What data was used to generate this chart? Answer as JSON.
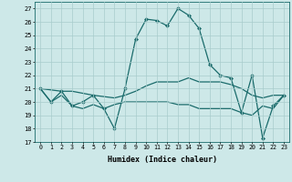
{
  "xlabel": "Humidex (Indice chaleur)",
  "bg_color": "#cde8e8",
  "grid_color": "#a8cccc",
  "line_color": "#1a6b6b",
  "xlim": [
    -0.5,
    23.5
  ],
  "ylim": [
    17,
    27.5
  ],
  "yticks": [
    17,
    18,
    19,
    20,
    21,
    22,
    23,
    24,
    25,
    26,
    27
  ],
  "xticks": [
    0,
    1,
    2,
    3,
    4,
    5,
    6,
    7,
    8,
    9,
    10,
    11,
    12,
    13,
    14,
    15,
    16,
    17,
    18,
    19,
    20,
    21,
    22,
    23
  ],
  "line_peak": {
    "x": [
      0,
      1,
      2,
      3,
      4,
      5,
      6,
      7,
      8,
      9,
      10,
      11,
      12,
      13,
      14,
      15,
      16,
      17,
      18,
      19,
      20,
      21,
      22,
      23
    ],
    "y": [
      21,
      20,
      20.8,
      19.7,
      20,
      20.5,
      19.5,
      18,
      21.0,
      24.7,
      26.2,
      26.1,
      25.7,
      27.0,
      26.5,
      25.5,
      22.8,
      22.0,
      21.8,
      19.2,
      22.0,
      17.3,
      19.7,
      20.5
    ]
  },
  "line_upper": {
    "x": [
      0,
      2,
      3,
      5,
      7,
      8,
      9,
      10,
      11,
      12,
      13,
      14,
      15,
      16,
      17,
      18,
      19,
      20,
      21,
      22,
      23
    ],
    "y": [
      21,
      20.8,
      20.8,
      20.5,
      20.3,
      20.5,
      20.8,
      21.2,
      21.5,
      21.5,
      21.5,
      21.8,
      21.5,
      21.5,
      21.5,
      21.3,
      21.0,
      20.5,
      20.3,
      20.5,
      20.5
    ]
  },
  "line_lower": {
    "x": [
      0,
      1,
      2,
      3,
      4,
      5,
      6,
      7,
      8,
      9,
      10,
      11,
      12,
      13,
      14,
      15,
      16,
      17,
      18,
      19,
      20,
      21,
      22,
      23
    ],
    "y": [
      21,
      20,
      20.5,
      19.7,
      19.5,
      19.8,
      19.5,
      19.8,
      20.0,
      20.0,
      20.0,
      20.0,
      20.0,
      19.8,
      19.8,
      19.5,
      19.5,
      19.5,
      19.5,
      19.2,
      19.0,
      19.7,
      19.5,
      20.5
    ]
  }
}
